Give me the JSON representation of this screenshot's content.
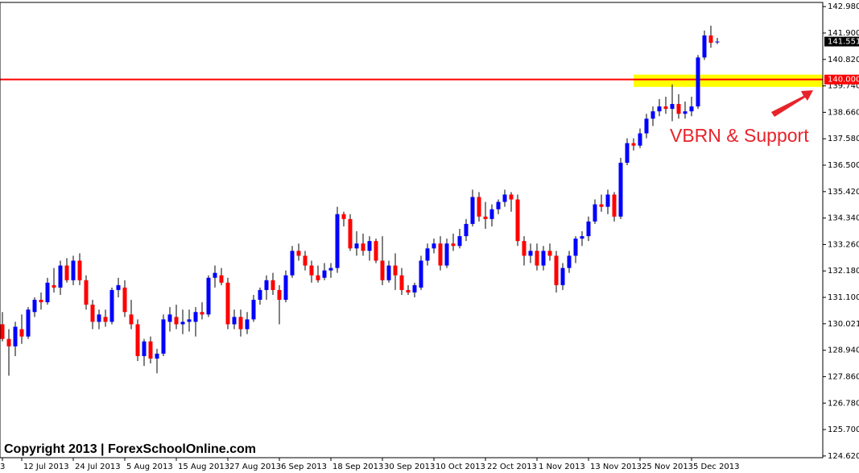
{
  "chart_data": {
    "type": "candlestick",
    "categories": [
      "3",
      null,
      null,
      "12 Jul 2013",
      null,
      null,
      null,
      null,
      null,
      null,
      null,
      "24 Jul 2013",
      null,
      null,
      null,
      null,
      null,
      null,
      null,
      "5 Aug 2013",
      null,
      null,
      null,
      null,
      null,
      null,
      null,
      "15 Aug 2013",
      null,
      null,
      null,
      null,
      null,
      null,
      null,
      "27 Aug 2013",
      null,
      null,
      null,
      null,
      null,
      null,
      null,
      "6 Sep 2013",
      null,
      null,
      null,
      null,
      null,
      null,
      null,
      "18 Sep 2013",
      null,
      null,
      null,
      null,
      null,
      null,
      null,
      "30 Sep 2013",
      null,
      null,
      null,
      null,
      null,
      null,
      null,
      "10 Oct 2013",
      null,
      null,
      null,
      null,
      null,
      null,
      null,
      "22 Oct 2013",
      null,
      null,
      null,
      null,
      null,
      null,
      null,
      "1 Nov 2013",
      null,
      null,
      null,
      null,
      null,
      null,
      null,
      "13 Nov 2013",
      null,
      null,
      null,
      null,
      null,
      null,
      null,
      "25 Nov 2013",
      null,
      null,
      null,
      null,
      null,
      null,
      null,
      "5 Dec 2013",
      null,
      null,
      null,
      null
    ],
    "open": [
      130.0,
      129.4,
      129.1,
      129.8,
      129.5,
      130.5,
      131.0,
      130.9,
      131.6,
      131.5,
      132.4,
      131.8,
      132.6,
      131.8,
      130.8,
      130.1,
      130.3,
      130.1,
      131.4,
      131.5,
      130.4,
      130.0,
      128.7,
      129.3,
      128.6,
      128.8,
      130.1,
      130.3,
      130.0,
      130.1,
      130.1,
      130.5,
      130.4,
      131.9,
      132.0,
      131.7,
      130.0,
      130.3,
      129.8,
      130.2,
      131.0,
      131.4,
      131.8,
      131.4,
      131.0,
      132.0,
      133.0,
      132.8,
      132.4,
      132.0,
      131.9,
      132.2,
      132.3,
      134.5,
      134.3,
      133.1,
      133.3,
      133.0,
      133.4,
      132.6,
      131.8,
      132.4,
      132.0,
      131.4,
      131.3,
      131.5,
      132.6,
      133.1,
      133.3,
      132.4,
      133.3,
      133.2,
      133.6,
      134.1,
      135.2,
      134.4,
      134.3,
      134.7,
      135.0,
      135.3,
      135.1,
      133.4,
      132.8,
      133.0,
      132.4,
      133.0,
      132.8,
      131.6,
      132.3,
      132.8,
      133.5,
      133.6,
      134.2,
      134.9,
      134.8,
      135.3,
      134.4,
      136.6,
      137.4,
      137.3,
      137.8,
      138.4,
      138.7,
      138.9,
      138.8,
      139.0,
      138.6,
      138.7,
      138.9,
      140.9,
      141.8,
      141.55
    ],
    "high": [
      130.5,
      129.8,
      130.1,
      130.4,
      130.7,
      131.1,
      131.3,
      131.9,
      132.3,
      132.6,
      132.7,
      132.8,
      132.9,
      132.0,
      131.0,
      130.6,
      130.6,
      131.5,
      131.9,
      131.8,
      131.0,
      130.2,
      129.4,
      129.5,
      129.0,
      130.4,
      130.7,
      130.8,
      130.6,
      130.6,
      130.7,
      130.9,
      132.0,
      132.4,
      132.3,
      131.9,
      130.6,
      130.6,
      130.5,
      131.2,
      131.5,
      132.0,
      132.1,
      131.6,
      132.2,
      133.2,
      133.3,
      133.0,
      132.6,
      132.4,
      132.5,
      132.5,
      134.8,
      134.6,
      134.5,
      133.8,
      133.7,
      133.6,
      133.5,
      133.6,
      132.6,
      132.9,
      132.3,
      131.6,
      131.7,
      132.8,
      133.3,
      133.5,
      133.6,
      133.5,
      133.7,
      133.9,
      134.3,
      135.5,
      135.4,
      135.0,
      134.9,
      135.1,
      135.5,
      135.4,
      135.3,
      133.6,
      133.3,
      133.3,
      133.2,
      133.3,
      133.0,
      132.5,
      133.0,
      133.6,
      133.8,
      134.4,
      135.1,
      135.3,
      135.5,
      135.4,
      136.8,
      137.6,
      137.6,
      138.0,
      138.6,
      138.9,
      139.2,
      139.3,
      139.8,
      139.4,
      139.1,
      139.3,
      141.0,
      142.0,
      142.2,
      141.7
    ],
    "low": [
      129.3,
      127.9,
      128.7,
      129.2,
      129.4,
      130.3,
      130.6,
      130.8,
      131.3,
      131.2,
      131.7,
      131.6,
      131.6,
      130.6,
      129.8,
      129.8,
      129.9,
      130.0,
      131.1,
      130.3,
      129.8,
      128.5,
      128.3,
      128.4,
      128.0,
      128.7,
      129.7,
      129.8,
      129.6,
      129.7,
      129.5,
      130.2,
      130.3,
      131.5,
      131.6,
      129.8,
      129.8,
      129.5,
      129.6,
      130.1,
      130.8,
      131.0,
      131.2,
      130.0,
      130.9,
      131.9,
      132.6,
      132.2,
      131.7,
      131.7,
      131.8,
      131.9,
      132.1,
      134.0,
      133.0,
      132.8,
      132.8,
      132.6,
      132.5,
      131.6,
      131.7,
      131.4,
      131.2,
      131.2,
      131.1,
      131.4,
      132.4,
      132.9,
      132.2,
      132.3,
      133.0,
      133.1,
      133.4,
      134.0,
      134.2,
      133.9,
      134.0,
      134.5,
      134.8,
      134.6,
      133.2,
      132.4,
      132.5,
      132.2,
      132.2,
      132.6,
      131.3,
      131.4,
      132.1,
      132.5,
      133.2,
      133.4,
      134.1,
      134.6,
      134.5,
      134.2,
      134.3,
      136.5,
      137.1,
      137.2,
      137.6,
      138.1,
      138.5,
      138.6,
      138.3,
      138.4,
      138.4,
      138.5,
      138.8,
      140.8,
      141.3,
      141.45
    ],
    "close": [
      129.4,
      129.1,
      129.9,
      129.5,
      130.6,
      131.0,
      130.9,
      131.7,
      131.5,
      132.4,
      131.8,
      132.6,
      131.8,
      130.8,
      130.1,
      130.4,
      130.1,
      131.4,
      131.6,
      130.5,
      130.0,
      128.7,
      129.3,
      128.6,
      128.8,
      130.2,
      130.4,
      130.0,
      130.1,
      130.2,
      130.5,
      130.4,
      131.9,
      132.1,
      131.7,
      130.0,
      130.3,
      129.8,
      130.2,
      131.0,
      131.4,
      131.8,
      131.4,
      131.0,
      132.0,
      133.0,
      132.8,
      132.4,
      132.0,
      131.8,
      132.2,
      132.3,
      134.5,
      134.3,
      133.1,
      133.3,
      133.0,
      133.4,
      132.6,
      131.8,
      132.4,
      132.0,
      131.4,
      131.3,
      131.6,
      132.6,
      133.1,
      133.3,
      132.4,
      133.3,
      133.2,
      133.6,
      134.1,
      135.2,
      134.4,
      134.3,
      134.7,
      135.0,
      135.3,
      135.1,
      133.4,
      132.8,
      133.0,
      132.4,
      133.0,
      132.8,
      131.6,
      132.3,
      132.8,
      133.5,
      133.6,
      134.2,
      134.9,
      134.8,
      135.3,
      134.4,
      136.6,
      137.4,
      137.3,
      137.8,
      138.4,
      138.7,
      138.9,
      138.8,
      139.0,
      138.6,
      138.7,
      138.9,
      140.9,
      141.8,
      141.5,
      141.551
    ],
    "up_color": "#0000ff",
    "down_color": "#ff0000",
    "wick_color": "#000000",
    "ylim": [
      124.55,
      143.15
    ],
    "yticks": [
      {
        "value": 124.62,
        "label": "124.620"
      },
      {
        "value": 125.7,
        "label": "125.700"
      },
      {
        "value": 126.78,
        "label": "126.780"
      },
      {
        "value": 127.86,
        "label": "127.860"
      },
      {
        "value": 128.94,
        "label": "128.940"
      },
      130.021,
      {
        "value": 131.1,
        "label": "131.100"
      },
      {
        "value": 132.18,
        "label": "132.180"
      },
      {
        "value": 133.26,
        "label": "133.260"
      },
      {
        "value": 134.34,
        "label": "134.340"
      },
      {
        "value": 135.42,
        "label": "135.420"
      },
      {
        "value": 136.5,
        "label": "136.500"
      },
      {
        "value": 137.58,
        "label": "137.580"
      },
      {
        "value": 138.66,
        "label": "138.660"
      },
      {
        "value": 139.74,
        "label": "139.740"
      },
      {
        "value": 140.82,
        "label": "140.820"
      },
      {
        "value": 141.9,
        "label": "141.900"
      },
      {
        "value": 142.98,
        "label": "142.980"
      }
    ],
    "hline": {
      "value": 140,
      "label": "140.000",
      "color": "#ff0000"
    },
    "last_price": {
      "value": 141.551,
      "label": "141.551"
    },
    "zone": {
      "low": 139.7,
      "high": 140.2,
      "color": "#ffff00"
    },
    "annotation": "VBRN & Support",
    "copyright": "Copyright 2013 | ForexSchoolOnline.com"
  }
}
